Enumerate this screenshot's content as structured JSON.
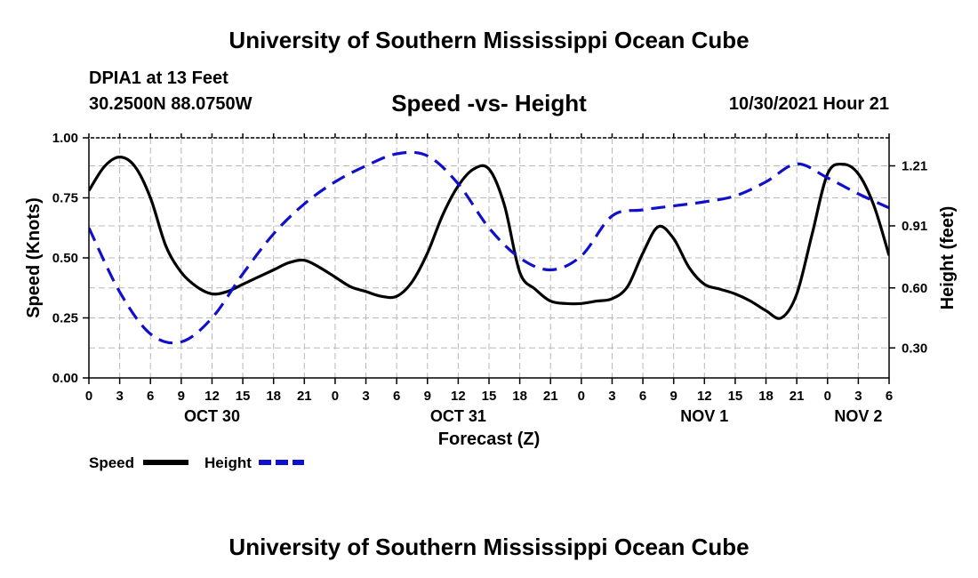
{
  "page": {
    "title_top": "University of Southern Mississippi Ocean Cube",
    "title_bottom": "University of Southern Mississippi Ocean Cube",
    "station": "DPIA1 at 13 Feet",
    "coordinates": "30.2500N  88.0750W",
    "timestamp": "10/30/2021 Hour 21"
  },
  "colors": {
    "speed": "#000000",
    "height": "#1010cc",
    "grid": "#b8b8b8"
  },
  "chart_data": {
    "type": "line",
    "title": "Speed -vs- Height",
    "xlabel": "Forecast (Z)",
    "ylabel": "Speed (Knots)",
    "y2label": "Height (feet)",
    "x_unit": "forecast hours from 10/30/2021 00Z",
    "xlim": [
      0,
      78
    ],
    "ylim": [
      0,
      1
    ],
    "y2lim": [
      0.15,
      1.35
    ],
    "x_ticks": [
      0,
      3,
      6,
      9,
      12,
      15,
      18,
      21,
      24,
      27,
      30,
      33,
      36,
      39,
      42,
      45,
      48,
      51,
      54,
      57,
      60,
      63,
      66,
      69,
      72,
      75,
      78
    ],
    "x_tick_labels": [
      "0",
      "3",
      "6",
      "9",
      "12",
      "15",
      "18",
      "21",
      "0",
      "3",
      "6",
      "9",
      "12",
      "15",
      "18",
      "21",
      "0",
      "3",
      "6",
      "9",
      "12",
      "15",
      "18",
      "21",
      "0",
      "3",
      "6"
    ],
    "date_labels": [
      {
        "x": 12,
        "label": "OCT 30"
      },
      {
        "x": 36,
        "label": "OCT 31"
      },
      {
        "x": 60,
        "label": "NOV 1"
      },
      {
        "x": 75,
        "label": "NOV 2"
      }
    ],
    "y_ticks": [
      0,
      0.25,
      0.5,
      0.75,
      1.0
    ],
    "y_tick_labels": [
      "0.00",
      "0.25",
      "0.50",
      "0.75",
      "1.00"
    ],
    "y2_ticks": [
      0.3,
      0.6,
      0.91,
      1.21
    ],
    "y2_tick_labels": [
      "0.30",
      "0.60",
      "0.91",
      "1.21"
    ],
    "grid": true,
    "legend_position": "bottom-left",
    "series": [
      {
        "name": "Speed",
        "axis": "left",
        "style": "solid",
        "x": [
          0,
          1.5,
          3,
          4.5,
          6,
          7.5,
          9,
          10.5,
          12,
          13.5,
          15,
          16.5,
          18,
          19.5,
          21,
          22.5,
          24,
          25.5,
          27,
          28.5,
          30,
          31.5,
          33,
          34.5,
          36,
          37.5,
          39,
          40.5,
          42,
          43.5,
          45,
          46.5,
          48,
          49.5,
          51,
          52.5,
          54,
          55.5,
          57,
          58.5,
          60,
          61.5,
          63,
          64.5,
          66,
          67.5,
          69,
          70.5,
          72,
          73.5,
          75,
          76.5,
          78
        ],
        "values": [
          0.78,
          0.88,
          0.92,
          0.88,
          0.75,
          0.55,
          0.44,
          0.38,
          0.35,
          0.36,
          0.39,
          0.42,
          0.45,
          0.48,
          0.49,
          0.46,
          0.42,
          0.38,
          0.36,
          0.34,
          0.34,
          0.4,
          0.52,
          0.68,
          0.8,
          0.87,
          0.87,
          0.72,
          0.44,
          0.37,
          0.32,
          0.31,
          0.31,
          0.32,
          0.33,
          0.38,
          0.52,
          0.63,
          0.58,
          0.46,
          0.39,
          0.37,
          0.35,
          0.32,
          0.28,
          0.25,
          0.35,
          0.6,
          0.85,
          0.89,
          0.85,
          0.72,
          0.51
        ]
      },
      {
        "name": "Height",
        "axis": "right",
        "style": "dashed",
        "x": [
          0,
          3,
          6,
          9,
          12,
          15,
          18,
          21,
          24,
          27,
          30,
          33,
          36,
          39,
          42,
          45,
          48,
          51,
          54,
          57,
          60,
          63,
          66,
          69,
          72,
          75,
          78
        ],
        "values": [
          0.9,
          0.58,
          0.37,
          0.33,
          0.45,
          0.67,
          0.87,
          1.02,
          1.13,
          1.21,
          1.27,
          1.26,
          1.12,
          0.9,
          0.75,
          0.69,
          0.76,
          0.96,
          0.99,
          1.01,
          1.03,
          1.06,
          1.13,
          1.22,
          1.15,
          1.07,
          1.0
        ]
      }
    ]
  }
}
